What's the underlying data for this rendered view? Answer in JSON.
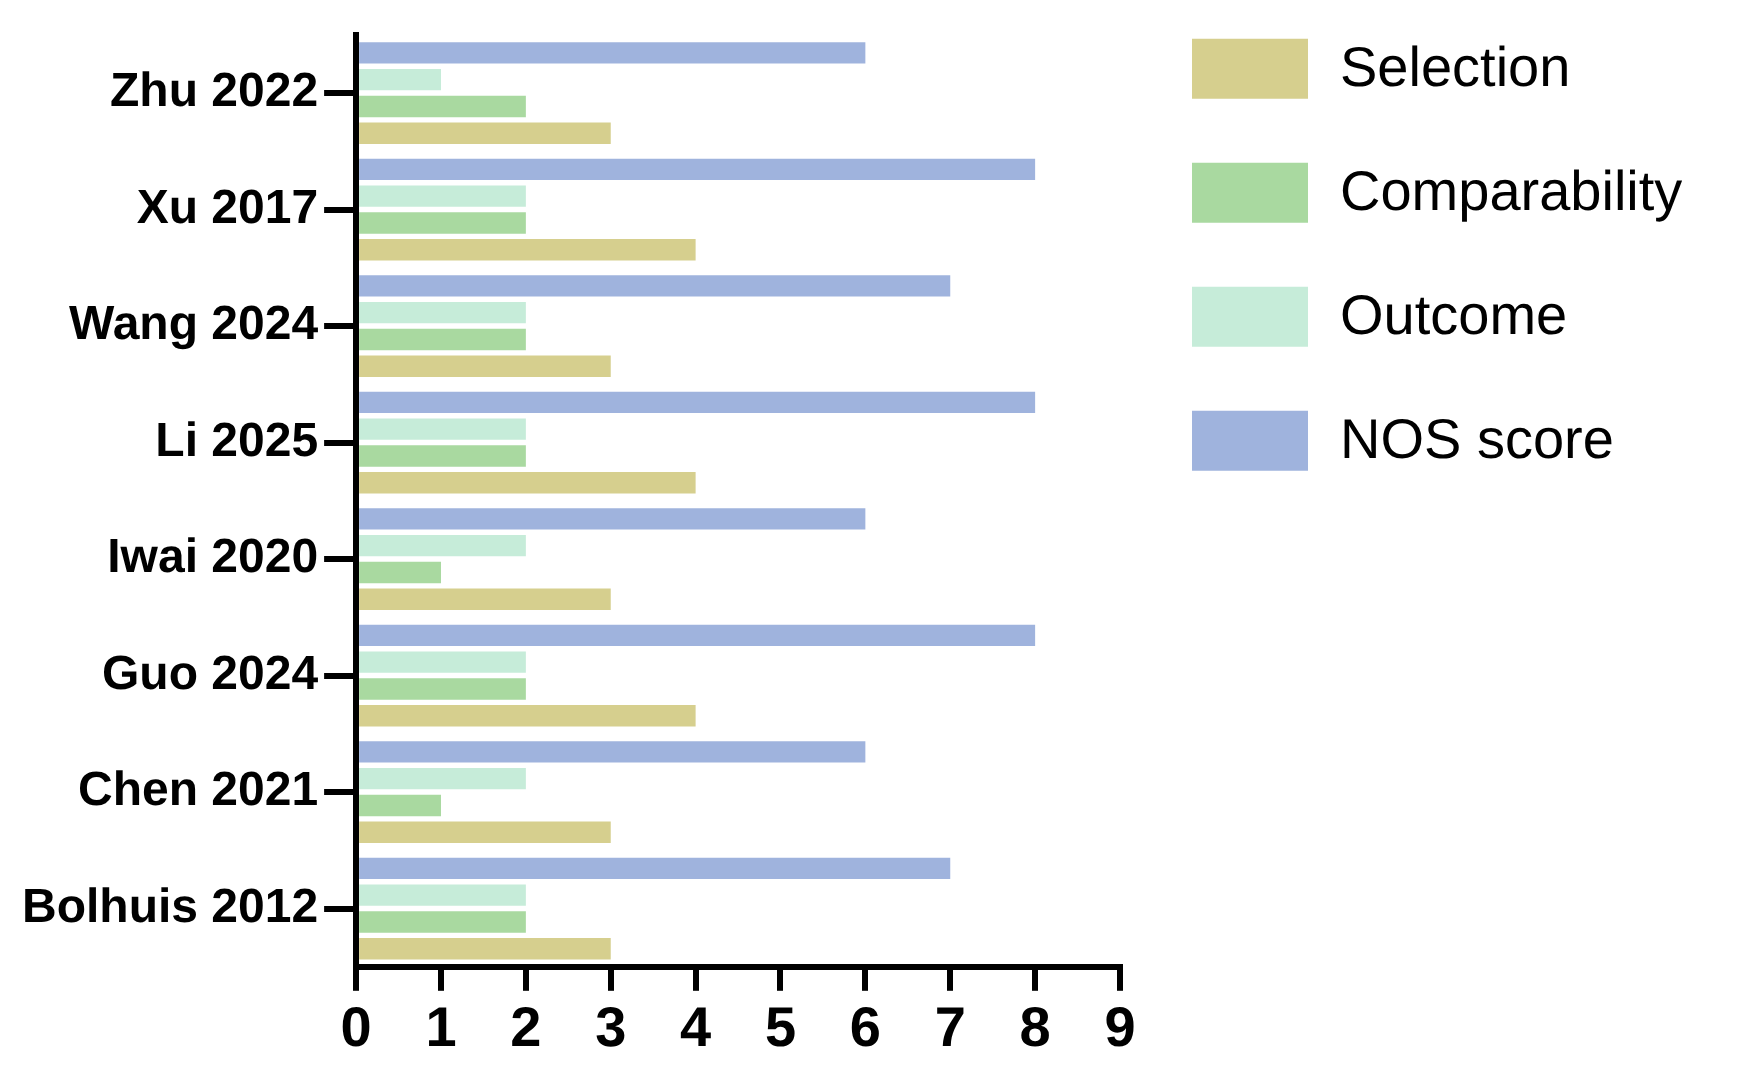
{
  "chart_data": {
    "type": "bar",
    "orientation": "horizontal",
    "categories": [
      "Zhu 2022",
      "Xu 2017",
      "Wang 2024",
      "Li 2025",
      "Iwai 2020",
      "Guo 2024",
      "Chen 2021",
      "Bolhuis 2012"
    ],
    "series": [
      {
        "name": "Selection",
        "color": "#d6cf8e",
        "values": [
          3,
          4,
          3,
          4,
          3,
          4,
          3,
          3
        ]
      },
      {
        "name": "Comparability",
        "color": "#a9d9a0",
        "values": [
          2,
          2,
          2,
          2,
          1,
          2,
          1,
          2
        ]
      },
      {
        "name": "Outcome",
        "color": "#c6ecd9",
        "values": [
          1,
          2,
          2,
          2,
          2,
          2,
          2,
          2
        ]
      },
      {
        "name": "NOS score",
        "color": "#9fb3dd",
        "values": [
          6,
          8,
          7,
          8,
          6,
          8,
          6,
          7
        ]
      }
    ],
    "xlim": [
      0,
      9
    ],
    "xticks": [
      0,
      1,
      2,
      3,
      4,
      5,
      6,
      7,
      8,
      9
    ],
    "grid": false,
    "legend": "top right"
  }
}
